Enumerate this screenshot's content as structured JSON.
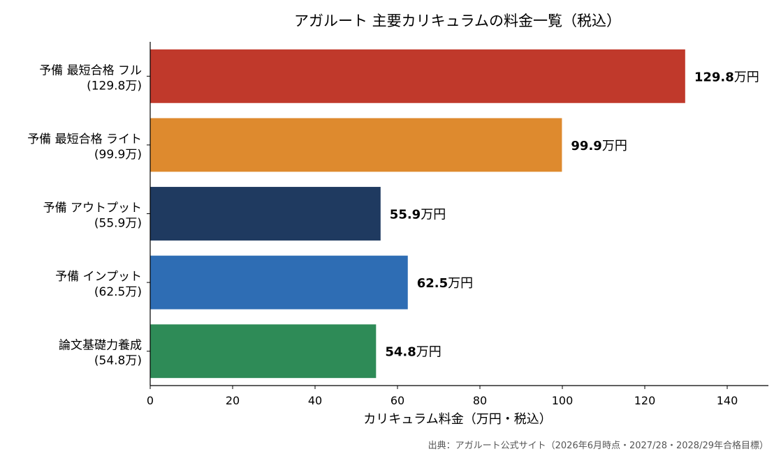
{
  "chart_data": {
    "type": "bar",
    "orientation": "horizontal",
    "title": "アガルート 主要カリキュラムの料金一覧（税込）",
    "xlabel": "カリキュラム料金（万円・税込）",
    "ylabel": "",
    "xlim": [
      0,
      150
    ],
    "xticks": [
      0,
      20,
      40,
      60,
      80,
      100,
      120,
      140
    ],
    "grid": false,
    "categories": [
      {
        "line1": "予備 最短合格 フル",
        "line2": "(129.8万)"
      },
      {
        "line1": "予備 最短合格 ライト",
        "line2": "(99.9万)"
      },
      {
        "line1": "予備 アウトプット",
        "line2": "(55.9万)"
      },
      {
        "line1": "予備 インプット",
        "line2": "(62.5万)"
      },
      {
        "line1": "論文基礎力養成",
        "line2": "(54.8万)"
      }
    ],
    "values": [
      129.8,
      99.9,
      55.9,
      62.5,
      54.8
    ],
    "value_labels": [
      "129.8",
      "99.9",
      "55.9",
      "62.5",
      "54.8"
    ],
    "value_unit": "万円",
    "colors": [
      "#c0392b",
      "#de8a2e",
      "#1f3a60",
      "#2e6db4",
      "#2e8b57"
    ],
    "source": "出典：アガルート公式サイト（2026年6月時点・2027/28・2028/29年合格目標）"
  }
}
